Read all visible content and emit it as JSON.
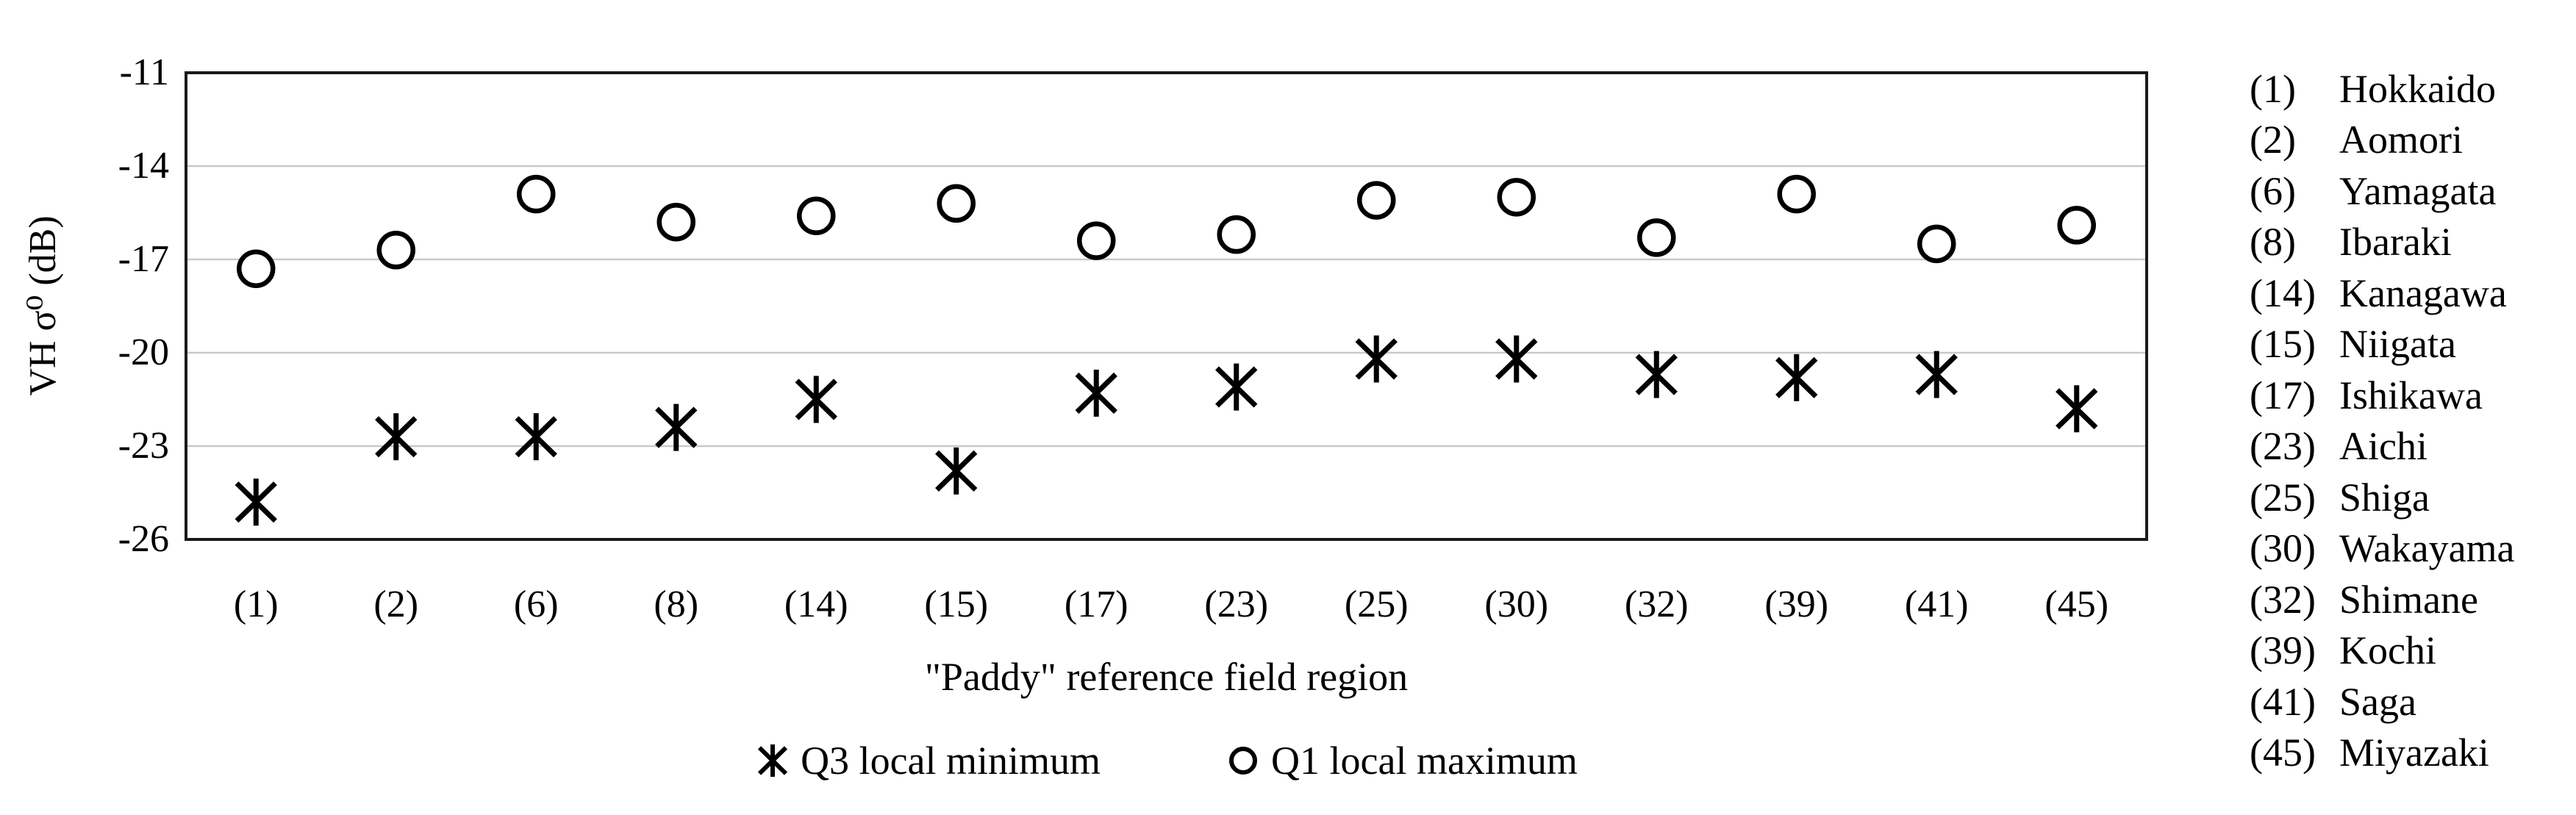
{
  "figure": {
    "y_axis": {
      "label": "VH σ⁰ (dB)",
      "tick_labels": [
        "-11",
        "-14",
        "-17",
        "-20",
        "-23",
        "-26"
      ]
    },
    "x_axis": {
      "title": "\"Paddy\" reference field region"
    },
    "region_key": [
      {
        "id": "(1)",
        "name": "Hokkaido"
      },
      {
        "id": "(2)",
        "name": "Aomori"
      },
      {
        "id": "(6)",
        "name": "Yamagata"
      },
      {
        "id": "(8)",
        "name": "Ibaraki"
      },
      {
        "id": "(14)",
        "name": "Kanagawa"
      },
      {
        "id": "(15)",
        "name": "Niigata"
      },
      {
        "id": "(17)",
        "name": "Ishikawa"
      },
      {
        "id": "(23)",
        "name": "Aichi"
      },
      {
        "id": "(25)",
        "name": "Shiga"
      },
      {
        "id": "(30)",
        "name": "Wakayama"
      },
      {
        "id": "(32)",
        "name": "Shimane"
      },
      {
        "id": "(39)",
        "name": "Kochi"
      },
      {
        "id": "(41)",
        "name": "Saga"
      },
      {
        "id": "(45)",
        "name": "Miyazaki"
      }
    ],
    "colors": {
      "marker": "#000000",
      "gridline": "#c9c9c9",
      "border": "#1a1a1a",
      "background": "#ffffff"
    }
  },
  "chart_data": {
    "type": "scatter",
    "title": "",
    "xlabel": "\"Paddy\" reference field region",
    "ylabel": "VH σ⁰ (dB)",
    "categories": [
      "(1)",
      "(2)",
      "(6)",
      "(8)",
      "(14)",
      "(15)",
      "(17)",
      "(23)",
      "(25)",
      "(30)",
      "(32)",
      "(39)",
      "(41)",
      "(45)"
    ],
    "series": [
      {
        "name": "Q3 local minimum",
        "marker": "asterisk",
        "values": [
          -24.8,
          -22.7,
          -22.7,
          -22.4,
          -21.5,
          -23.8,
          -21.3,
          -21.1,
          -20.2,
          -20.2,
          -20.7,
          -20.8,
          -20.7,
          -21.8
        ]
      },
      {
        "name": "Q1 local maximum",
        "marker": "circle",
        "values": [
          -17.3,
          -16.7,
          -14.9,
          -15.8,
          -15.6,
          -15.2,
          -16.4,
          -16.2,
          -15.1,
          -15.0,
          -16.3,
          -14.9,
          -16.5,
          -15.9
        ]
      }
    ],
    "ylim": [
      -26,
      -11
    ],
    "yticks": [
      -11,
      -14,
      -17,
      -20,
      -23,
      -26
    ],
    "grid": "horizontal",
    "legend_position": "bottom"
  }
}
